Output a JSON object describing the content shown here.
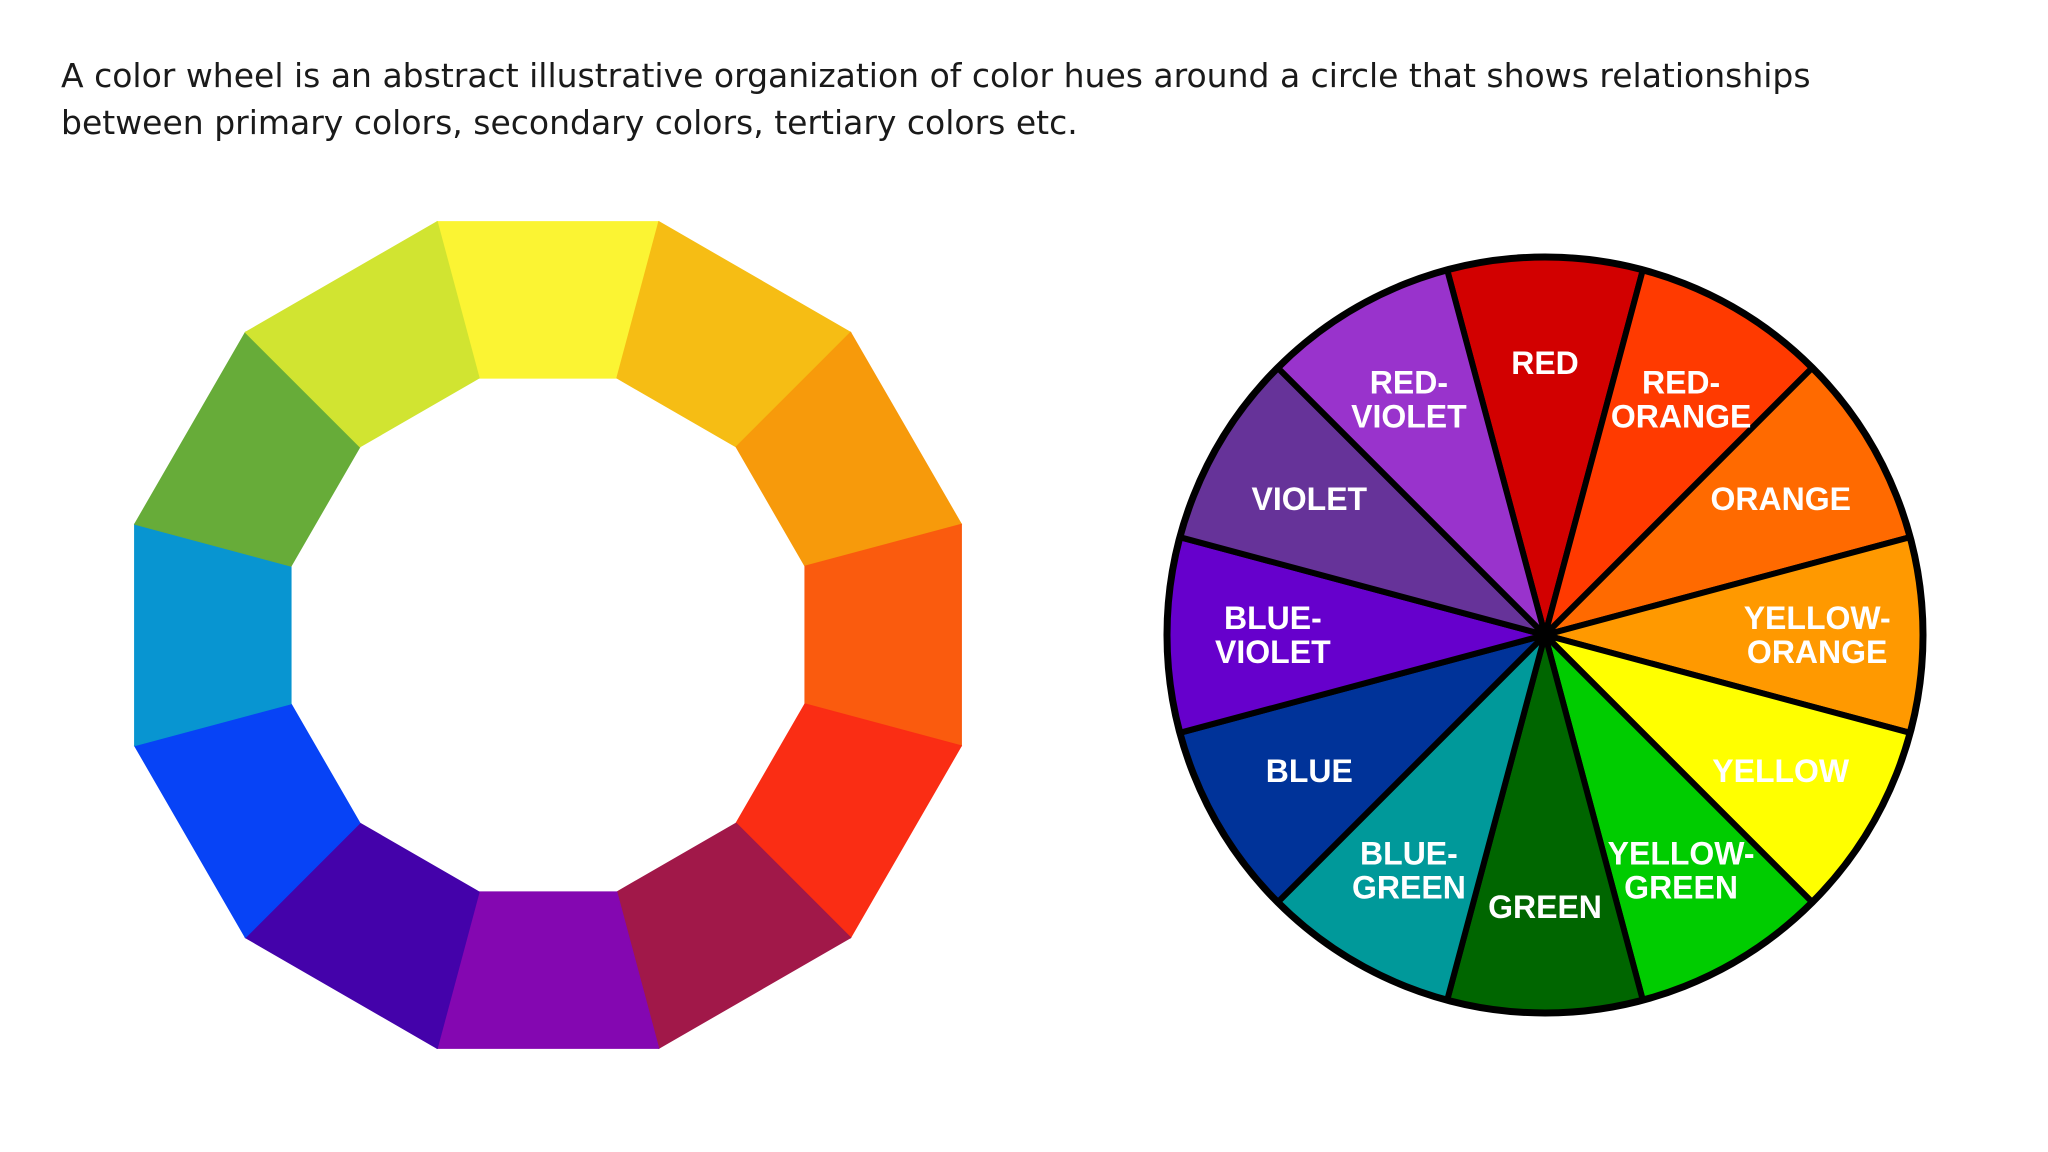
{
  "caption": "A color wheel is an abstract illustrative organization of color hues around a circle that shows relationships between primary colors, secondary colors, tertiary colors etc.",
  "ring_wheel": {
    "segments": [
      {
        "color": "#fbf433"
      },
      {
        "color": "#f6bd14"
      },
      {
        "color": "#f79a0b"
      },
      {
        "color": "#fa5b0e"
      },
      {
        "color": "#fa2d14"
      },
      {
        "color": "#a11849"
      },
      {
        "color": "#8407b1"
      },
      {
        "color": "#4402aa"
      },
      {
        "color": "#0743f6"
      },
      {
        "color": "#0895d1"
      },
      {
        "color": "#67ac39"
      },
      {
        "color": "#d1e431"
      }
    ]
  },
  "labeled_wheel": {
    "segments": [
      {
        "lines": [
          "RED"
        ],
        "color": "#d20000",
        "text_color": "#ffffff"
      },
      {
        "lines": [
          "RED-",
          "ORANGE"
        ],
        "color": "#ff3a00",
        "text_color": "#ffffff"
      },
      {
        "lines": [
          "ORANGE"
        ],
        "color": "#ff6a00",
        "text_color": "#ffffff"
      },
      {
        "lines": [
          "YELLOW-",
          "ORANGE"
        ],
        "color": "#ff9900",
        "text_color": "#ffffff"
      },
      {
        "lines": [
          "YELLOW"
        ],
        "color": "#ffff00",
        "text_color": "#111111"
      },
      {
        "lines": [
          "YELLOW-",
          "GREEN"
        ],
        "color": "#00cc00",
        "text_color": "#ffffff"
      },
      {
        "lines": [
          "GREEN"
        ],
        "color": "#006600",
        "text_color": "#ffffff"
      },
      {
        "lines": [
          "BLUE-",
          "GREEN"
        ],
        "color": "#00999a",
        "text_color": "#ffffff"
      },
      {
        "lines": [
          "BLUE"
        ],
        "color": "#003399",
        "text_color": "#ffffff"
      },
      {
        "lines": [
          "BLUE-",
          "VIOLET"
        ],
        "color": "#6600cc",
        "text_color": "#ffffff"
      },
      {
        "lines": [
          "VIOLET"
        ],
        "color": "#663399",
        "text_color": "#ffffff"
      },
      {
        "lines": [
          "RED-",
          "VIOLET"
        ],
        "color": "#9933cc",
        "text_color": "#ffffff"
      }
    ]
  }
}
